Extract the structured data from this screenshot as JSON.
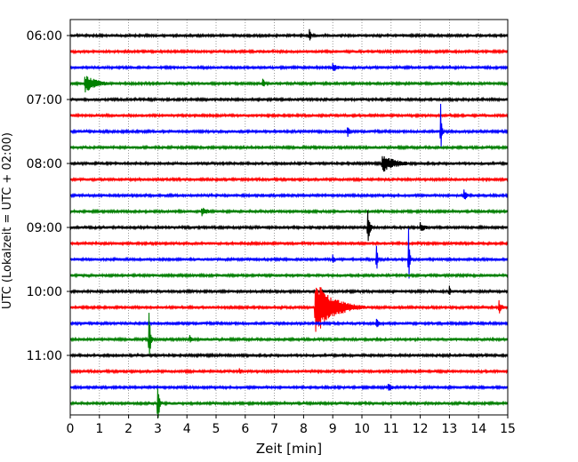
{
  "chart_data": {
    "type": "line",
    "title": "",
    "xlabel": "Zeit  [min]",
    "ylabel": "UTC (Lokalzeit = UTC + 02:00)",
    "xlim": [
      0,
      15
    ],
    "x_ticks": [
      "0",
      "1",
      "2",
      "3",
      "4",
      "5",
      "6",
      "7",
      "8",
      "9",
      "10",
      "11",
      "12",
      "13",
      "14",
      "15"
    ],
    "y_ticks": [
      "06:00",
      "07:00",
      "08:00",
      "09:00",
      "10:00",
      "11:00"
    ],
    "grid": "vertical dotted",
    "trace_interval_minutes": 15,
    "trace_start": "06:00",
    "trace_count": 24,
    "trace_colors": [
      "#000000",
      "#ff0000",
      "#0000ff",
      "#008000"
    ],
    "events": [
      {
        "trace": 0,
        "x": 8.2,
        "amp": 0.35,
        "dur": 0.15
      },
      {
        "trace": 2,
        "x": 9.0,
        "amp": 0.18,
        "dur": 0.6
      },
      {
        "trace": 3,
        "x": 0.5,
        "amp": 0.35,
        "dur": 1.3
      },
      {
        "trace": 3,
        "x": 6.6,
        "amp": 0.2,
        "dur": 0.3
      },
      {
        "trace": 6,
        "x": 9.5,
        "amp": 0.25,
        "dur": 0.25
      },
      {
        "trace": 6,
        "x": 12.7,
        "amp": 1.15,
        "dur": 0.1
      },
      {
        "trace": 8,
        "x": 10.7,
        "amp": 0.35,
        "dur": 1.5
      },
      {
        "trace": 10,
        "x": 13.5,
        "amp": 0.25,
        "dur": 0.3
      },
      {
        "trace": 11,
        "x": 4.5,
        "amp": 0.2,
        "dur": 0.7
      },
      {
        "trace": 12,
        "x": 10.2,
        "amp": 0.75,
        "dur": 0.2
      },
      {
        "trace": 12,
        "x": 12.0,
        "amp": 0.2,
        "dur": 0.6
      },
      {
        "trace": 14,
        "x": 9.0,
        "amp": 0.2,
        "dur": 0.3
      },
      {
        "trace": 14,
        "x": 10.5,
        "amp": 0.85,
        "dur": 0.1
      },
      {
        "trace": 14,
        "x": 11.6,
        "amp": 1.2,
        "dur": 0.1
      },
      {
        "trace": 16,
        "x": 13.0,
        "amp": 0.25,
        "dur": 0.15
      },
      {
        "trace": 17,
        "x": 8.4,
        "amp": 1.1,
        "dur": 1.8
      },
      {
        "trace": 17,
        "x": 14.7,
        "amp": 0.3,
        "dur": 0.3
      },
      {
        "trace": 18,
        "x": 10.5,
        "amp": 0.2,
        "dur": 0.3
      },
      {
        "trace": 19,
        "x": 2.7,
        "amp": 1.1,
        "dur": 0.15
      },
      {
        "trace": 19,
        "x": 4.1,
        "amp": 0.2,
        "dur": 0.3
      },
      {
        "trace": 21,
        "x": 5.8,
        "amp": 0.15,
        "dur": 0.3
      },
      {
        "trace": 22,
        "x": 10.9,
        "amp": 0.18,
        "dur": 0.5
      },
      {
        "trace": 23,
        "x": 3.0,
        "amp": 1.0,
        "dur": 0.15
      }
    ]
  }
}
